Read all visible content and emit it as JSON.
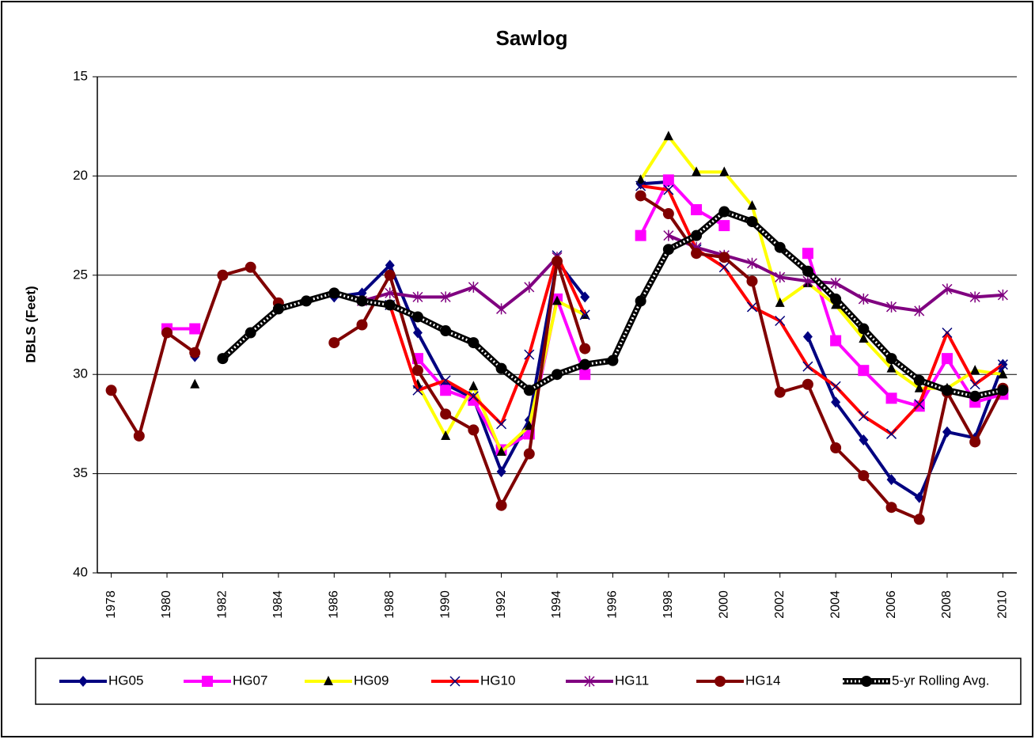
{
  "chart_data": {
    "type": "line",
    "title": "Sawlog",
    "y_label": "DBLS (Feet)",
    "x": [
      1978,
      1979,
      1980,
      1981,
      1982,
      1983,
      1984,
      1985,
      1986,
      1987,
      1988,
      1989,
      1990,
      1991,
      1992,
      1993,
      1994,
      1995,
      1996,
      1997,
      1998,
      1999,
      2000,
      2001,
      2002,
      2003,
      2004,
      2005,
      2006,
      2007,
      2008,
      2009,
      2010
    ],
    "xlim": [
      1977.5,
      2010.5
    ],
    "xticks": [
      1978,
      1980,
      1982,
      1984,
      1986,
      1988,
      1990,
      1992,
      1994,
      1996,
      1998,
      2000,
      2002,
      2004,
      2006,
      2008,
      2010
    ],
    "ylim": [
      15,
      40
    ],
    "y_reversed": true,
    "yticks": [
      15,
      20,
      25,
      30,
      35,
      40
    ],
    "grid": true,
    "legend": "bottom",
    "series": [
      {
        "name": "HG05",
        "color": "#000080",
        "marker": "diamond",
        "values": [
          null,
          null,
          null,
          29.1,
          null,
          null,
          null,
          null,
          26.1,
          25.9,
          24.5,
          27.9,
          30.5,
          31.2,
          34.9,
          32.3,
          24.3,
          26.1,
          null,
          20.4,
          20.3,
          null,
          null,
          null,
          null,
          28.1,
          31.4,
          33.3,
          35.3,
          36.2,
          32.9,
          33.2,
          29.5
        ]
      },
      {
        "name": "HG07",
        "color": "#ff00ff",
        "marker": "square",
        "values": [
          null,
          null,
          27.7,
          27.7,
          null,
          null,
          null,
          null,
          null,
          null,
          null,
          29.2,
          30.8,
          31.3,
          33.8,
          33.0,
          26.2,
          30.0,
          null,
          23.0,
          20.2,
          21.7,
          22.5,
          null,
          null,
          23.9,
          28.3,
          29.8,
          31.2,
          31.6,
          29.2,
          31.4,
          31.0
        ]
      },
      {
        "name": "HG09",
        "color": "#ffff00",
        "marker": "triangle",
        "values": [
          null,
          null,
          null,
          30.5,
          null,
          null,
          null,
          null,
          null,
          null,
          null,
          30.5,
          33.1,
          30.6,
          33.9,
          32.6,
          26.3,
          27.0,
          null,
          20.2,
          18.0,
          19.8,
          19.8,
          21.5,
          26.4,
          25.4,
          26.5,
          28.2,
          29.7,
          30.7,
          30.7,
          29.8,
          30.0
        ]
      },
      {
        "name": "HG10",
        "color": "#ff0000",
        "marker": "x",
        "values": [
          null,
          null,
          null,
          null,
          null,
          null,
          null,
          null,
          null,
          null,
          26.5,
          30.8,
          30.3,
          31.1,
          32.5,
          29.0,
          24.0,
          27.0,
          null,
          20.5,
          20.7,
          23.7,
          24.6,
          26.6,
          27.3,
          29.6,
          30.6,
          32.1,
          33.0,
          31.5,
          27.9,
          30.5,
          29.5
        ]
      },
      {
        "name": "HG11",
        "color": "#800080",
        "marker": "star",
        "values": [
          null,
          null,
          null,
          null,
          null,
          null,
          null,
          null,
          null,
          26.3,
          25.9,
          26.1,
          26.1,
          25.6,
          26.7,
          25.6,
          24.1,
          null,
          null,
          null,
          23.0,
          23.6,
          24.0,
          24.4,
          25.1,
          25.3,
          25.4,
          26.2,
          26.6,
          26.8,
          25.7,
          26.1,
          26.0
        ]
      },
      {
        "name": "HG14",
        "color": "#800000",
        "marker": "circle",
        "values": [
          30.8,
          33.1,
          27.9,
          28.9,
          25.0,
          24.6,
          26.4,
          null,
          28.4,
          27.5,
          25.0,
          29.8,
          32.0,
          32.8,
          36.6,
          34.0,
          24.3,
          28.7,
          null,
          21.0,
          21.9,
          23.9,
          24.1,
          25.3,
          30.9,
          30.5,
          33.7,
          35.1,
          36.7,
          37.3,
          30.9,
          33.4,
          30.7
        ]
      },
      {
        "name": "5-yr Rolling  Avg.",
        "color": "#000000",
        "marker": "circle",
        "pattern": "dotted",
        "values": [
          null,
          null,
          null,
          null,
          29.2,
          27.9,
          26.7,
          26.3,
          25.9,
          26.3,
          26.5,
          27.1,
          27.8,
          28.4,
          29.7,
          30.8,
          30.0,
          29.5,
          29.3,
          26.3,
          23.7,
          23.0,
          21.8,
          22.3,
          23.6,
          24.8,
          26.2,
          27.7,
          29.2,
          30.3,
          30.8,
          31.1,
          30.8
        ]
      }
    ]
  }
}
